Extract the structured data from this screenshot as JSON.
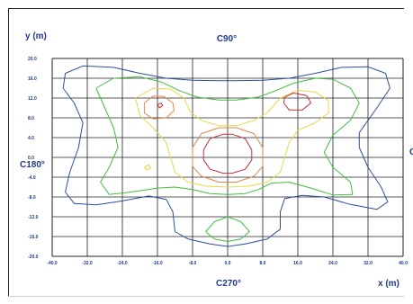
{
  "chart_data": {
    "type": "contour",
    "ylabel": "y (m)",
    "xlabel": "x (m)",
    "direction_labels": {
      "top": "C90°",
      "left": "C180°",
      "bottom": "C270°",
      "right": "C"
    },
    "xlim": [
      -40,
      40
    ],
    "ylim": [
      -20,
      20
    ],
    "x_ticks": [
      "-40.0",
      "-32.0",
      "-24.0",
      "-16.0",
      "-8.0",
      "0.0",
      "8.0",
      "16.0",
      "24.0",
      "32.0",
      "40.0"
    ],
    "y_ticks": [
      "20.0",
      "16.0",
      "12.0",
      "8.0",
      "4.0",
      "0.0",
      "-4.0",
      "-8.0",
      "-12.0",
      "-16.0",
      "-20.0"
    ],
    "grid": true,
    "colors": {
      "blue": "#2b4fa0",
      "green": "#3fbf3f",
      "yellow": "#e6d84a",
      "orange": "#e0864a",
      "red": "#c0303a",
      "grid": "#222222",
      "text": "#1f3a8a"
    },
    "contours": [
      {
        "color": "blue",
        "points": [
          [
            -37,
            17
          ],
          [
            -33,
            18.5
          ],
          [
            -26,
            18.2
          ],
          [
            -20,
            17
          ],
          [
            -14,
            16
          ],
          [
            -8,
            15.6
          ],
          [
            -2,
            15.5
          ],
          [
            2,
            15.5
          ],
          [
            8,
            15.6
          ],
          [
            14,
            16
          ],
          [
            20,
            17
          ],
          [
            26,
            18.2
          ],
          [
            32,
            18.3
          ],
          [
            36,
            17
          ],
          [
            37,
            14
          ],
          [
            34,
            10
          ],
          [
            30,
            5
          ],
          [
            30,
            2
          ],
          [
            32,
            -2
          ],
          [
            35,
            -6
          ],
          [
            36.5,
            -9
          ],
          [
            34,
            -10.5
          ],
          [
            28,
            -9.5
          ],
          [
            22,
            -8
          ],
          [
            17,
            -7.7
          ],
          [
            13,
            -8.3
          ],
          [
            12,
            -11
          ],
          [
            12,
            -14.5
          ],
          [
            9,
            -16.5
          ],
          [
            4,
            -17.5
          ],
          [
            0,
            -18
          ],
          [
            -4,
            -17.5
          ],
          [
            -9,
            -16.5
          ],
          [
            -12,
            -15
          ],
          [
            -12.5,
            -11
          ],
          [
            -14,
            -8.5
          ],
          [
            -18,
            -7.8
          ],
          [
            -24,
            -8.8
          ],
          [
            -30,
            -9.6
          ],
          [
            -35,
            -9.3
          ],
          [
            -37,
            -7
          ],
          [
            -36,
            -3
          ],
          [
            -34,
            2
          ],
          [
            -33,
            7
          ],
          [
            -35,
            11
          ],
          [
            -37.5,
            14
          ],
          [
            -37,
            17
          ]
        ]
      },
      {
        "color": "green",
        "points": [
          [
            -30,
            14
          ],
          [
            -26,
            16
          ],
          [
            -20,
            16.3
          ],
          [
            -15,
            15.2
          ],
          [
            -11,
            13.5
          ],
          [
            -7,
            12.2
          ],
          [
            -2,
            11.6
          ],
          [
            2,
            11.6
          ],
          [
            7,
            12.2
          ],
          [
            11,
            13.5
          ],
          [
            15,
            15
          ],
          [
            20,
            16
          ],
          [
            24,
            15.8
          ],
          [
            28,
            14
          ],
          [
            30,
            11
          ],
          [
            28,
            7.5
          ],
          [
            24,
            4.5
          ],
          [
            22,
            1
          ],
          [
            24,
            -2
          ],
          [
            28,
            -5
          ],
          [
            28.5,
            -7.5
          ],
          [
            24,
            -7.6
          ],
          [
            19,
            -6.2
          ],
          [
            14,
            -5
          ],
          [
            10,
            -5.2
          ],
          [
            7,
            -6.5
          ],
          [
            4,
            -7.3
          ],
          [
            0,
            -7.5
          ],
          [
            -4,
            -7.3
          ],
          [
            -8,
            -6.5
          ],
          [
            -12,
            -6
          ],
          [
            -16,
            -6.2
          ],
          [
            -22,
            -7
          ],
          [
            -27,
            -7.5
          ],
          [
            -29,
            -5
          ],
          [
            -27,
            -2
          ],
          [
            -25,
            2
          ],
          [
            -26,
            6
          ],
          [
            -28,
            10
          ],
          [
            -30,
            14
          ]
        ]
      },
      {
        "color": "green",
        "points": [
          [
            -5,
            -15
          ],
          [
            -3,
            -13
          ],
          [
            0,
            -12
          ],
          [
            3,
            -13
          ],
          [
            5,
            -15
          ],
          [
            3,
            -16.5
          ],
          [
            0,
            -17
          ],
          [
            -3,
            -16.5
          ],
          [
            -5,
            -15
          ]
        ]
      },
      {
        "color": "yellow",
        "points": [
          [
            -21,
            12
          ],
          [
            -17,
            14
          ],
          [
            -13,
            13.8
          ],
          [
            -10,
            12
          ],
          [
            -8.5,
            9.2
          ],
          [
            -6,
            7.5
          ],
          [
            -2,
            6.4
          ],
          [
            2,
            6.4
          ],
          [
            6,
            7.5
          ],
          [
            9,
            9
          ],
          [
            12,
            12
          ],
          [
            16,
            13.6
          ],
          [
            20,
            13.2
          ],
          [
            23,
            11.5
          ],
          [
            23,
            9
          ],
          [
            20,
            7
          ],
          [
            16,
            5.5
          ],
          [
            14,
            3
          ],
          [
            13,
            0
          ],
          [
            12,
            -3
          ],
          [
            9,
            -5
          ],
          [
            5,
            -5.8
          ],
          [
            0,
            -6
          ],
          [
            -5,
            -5.8
          ],
          [
            -9,
            -5
          ],
          [
            -12,
            -3
          ],
          [
            -13,
            0
          ],
          [
            -14,
            3
          ],
          [
            -17,
            6
          ],
          [
            -20,
            8.5
          ],
          [
            -21,
            12
          ]
        ]
      },
      {
        "color": "yellow",
        "points": [
          [
            -19,
            -2
          ],
          [
            -18,
            -1.5
          ],
          [
            -17.5,
            -2.2
          ],
          [
            -18.5,
            -2.5
          ],
          [
            -19,
            -2
          ]
        ]
      },
      {
        "color": "orange",
        "points": [
          [
            -19,
            11
          ],
          [
            -17,
            12.4
          ],
          [
            -14.5,
            12.3
          ],
          [
            -12.5,
            11
          ],
          [
            -12.2,
            9.5
          ],
          [
            -14,
            8
          ],
          [
            -17,
            7.8
          ],
          [
            -19,
            9
          ],
          [
            -19,
            11
          ]
        ]
      },
      {
        "color": "orange",
        "points": [
          [
            -8,
            2
          ],
          [
            -6,
            4.8
          ],
          [
            -2,
            6
          ],
          [
            2,
            6
          ],
          [
            6,
            4.8
          ],
          [
            8,
            2
          ],
          [
            8,
            -1.8
          ],
          [
            6,
            -3.8
          ],
          [
            2,
            -5
          ],
          [
            -2,
            -5
          ],
          [
            -6,
            -3.8
          ],
          [
            -8,
            -1.8
          ],
          [
            -8,
            2
          ]
        ]
      },
      {
        "color": "red",
        "points": [
          [
            13,
            12.2
          ],
          [
            15,
            13
          ],
          [
            18,
            12.5
          ],
          [
            19,
            11
          ],
          [
            17,
            9.6
          ],
          [
            14,
            9.6
          ],
          [
            12.8,
            11
          ],
          [
            13,
            12.2
          ]
        ]
      },
      {
        "color": "red",
        "points": [
          [
            -5.5,
            1.5
          ],
          [
            -4,
            3.8
          ],
          [
            -1,
            4.7
          ],
          [
            1,
            4.7
          ],
          [
            4,
            3.8
          ],
          [
            5.5,
            1.5
          ],
          [
            5.5,
            -0.5
          ],
          [
            4,
            -2.4
          ],
          [
            1,
            -3.2
          ],
          [
            -1,
            -3.2
          ],
          [
            -4,
            -2.4
          ],
          [
            -5.5,
            -0.5
          ],
          [
            -5.5,
            1.5
          ]
        ]
      },
      {
        "color": "red",
        "points": [
          [
            -16,
            10.6
          ],
          [
            -15.2,
            11
          ],
          [
            -14.8,
            10.5
          ],
          [
            -15.5,
            10
          ],
          [
            -16,
            10.6
          ]
        ]
      }
    ]
  }
}
